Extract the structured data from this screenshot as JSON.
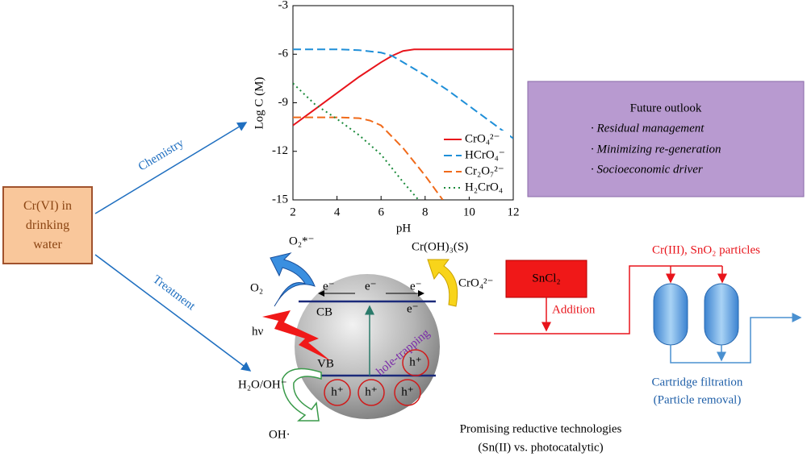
{
  "chart_data": {
    "type": "line",
    "x_label": "pH",
    "y_label": "Log C (M)",
    "xlim": [
      2,
      12
    ],
    "ylim": [
      -15,
      -3
    ],
    "xticks": [
      2,
      4,
      6,
      8,
      10,
      12
    ],
    "yticks": [
      -3,
      -6,
      -9,
      -12,
      -15
    ],
    "legend": "lower right",
    "series": [
      {
        "name": "CrO₄²⁻",
        "color": "#e8141b",
        "style": "solid",
        "x": [
          2,
          3,
          4,
          5,
          6,
          6.5,
          7,
          7.5,
          8,
          9,
          10,
          11,
          12
        ],
        "values": [
          -10.4,
          -9.4,
          -8.4,
          -7.4,
          -6.5,
          -6.1,
          -5.8,
          -5.7,
          -5.7,
          -5.7,
          -5.7,
          -5.7,
          -5.7
        ]
      },
      {
        "name": "HCrO₄⁻",
        "color": "#1f8fd8",
        "style": "dashed",
        "x": [
          2,
          4,
          5,
          6,
          6.5,
          7,
          8,
          9,
          10,
          11,
          12
        ],
        "values": [
          -5.7,
          -5.7,
          -5.75,
          -5.9,
          -6.1,
          -6.5,
          -7.3,
          -8.2,
          -9.2,
          -10.2,
          -11.2
        ]
      },
      {
        "name": "Cr₂O₇²⁻",
        "color": "#f06a1a",
        "style": "dashed",
        "x": [
          2,
          4,
          5,
          5.5,
          6,
          7,
          8,
          8.8
        ],
        "values": [
          -9.9,
          -9.9,
          -9.95,
          -10.1,
          -10.4,
          -11.8,
          -13.5,
          -15
        ]
      },
      {
        "name": "H₂CrO₄",
        "color": "#1a8a3a",
        "style": "dotted",
        "x": [
          2,
          3,
          4,
          5,
          6,
          7,
          7.7
        ],
        "values": [
          -7.8,
          -9.1,
          -10.0,
          -11.0,
          -12.2,
          -13.9,
          -15
        ]
      }
    ]
  },
  "diagram": {
    "source": "Cr(VI) in drinking water",
    "chemistry": "Chemistry",
    "treatment": "Treatment",
    "outlook": {
      "title": "Future outlook",
      "items": [
        "· Residual management",
        "· Minimizing re-generation",
        "· Socioeconomic driver"
      ]
    },
    "photo": {
      "o2_radical": "O₂*⁻",
      "o2": "O₂",
      "hv": "hν",
      "cb": "CB",
      "vb": "VB",
      "electron": "e⁻",
      "hole": "h⁺",
      "hole_trapping": "hole-trapping",
      "product": "Cr(OH)₃(S)",
      "chromate": "CrO₄²⁻",
      "water": "H₂O/OH⁻",
      "oh": "OH·"
    },
    "process": {
      "reagent": "SnCl₂",
      "addition": "Addition",
      "particles": "Cr(III), SnO₂ particles",
      "filtration": "Cartridge filtration",
      "removal": "(Particle removal)"
    },
    "caption": [
      "Promising reductive technologies",
      "(Sn(II) vs. photocatalytic)"
    ]
  }
}
